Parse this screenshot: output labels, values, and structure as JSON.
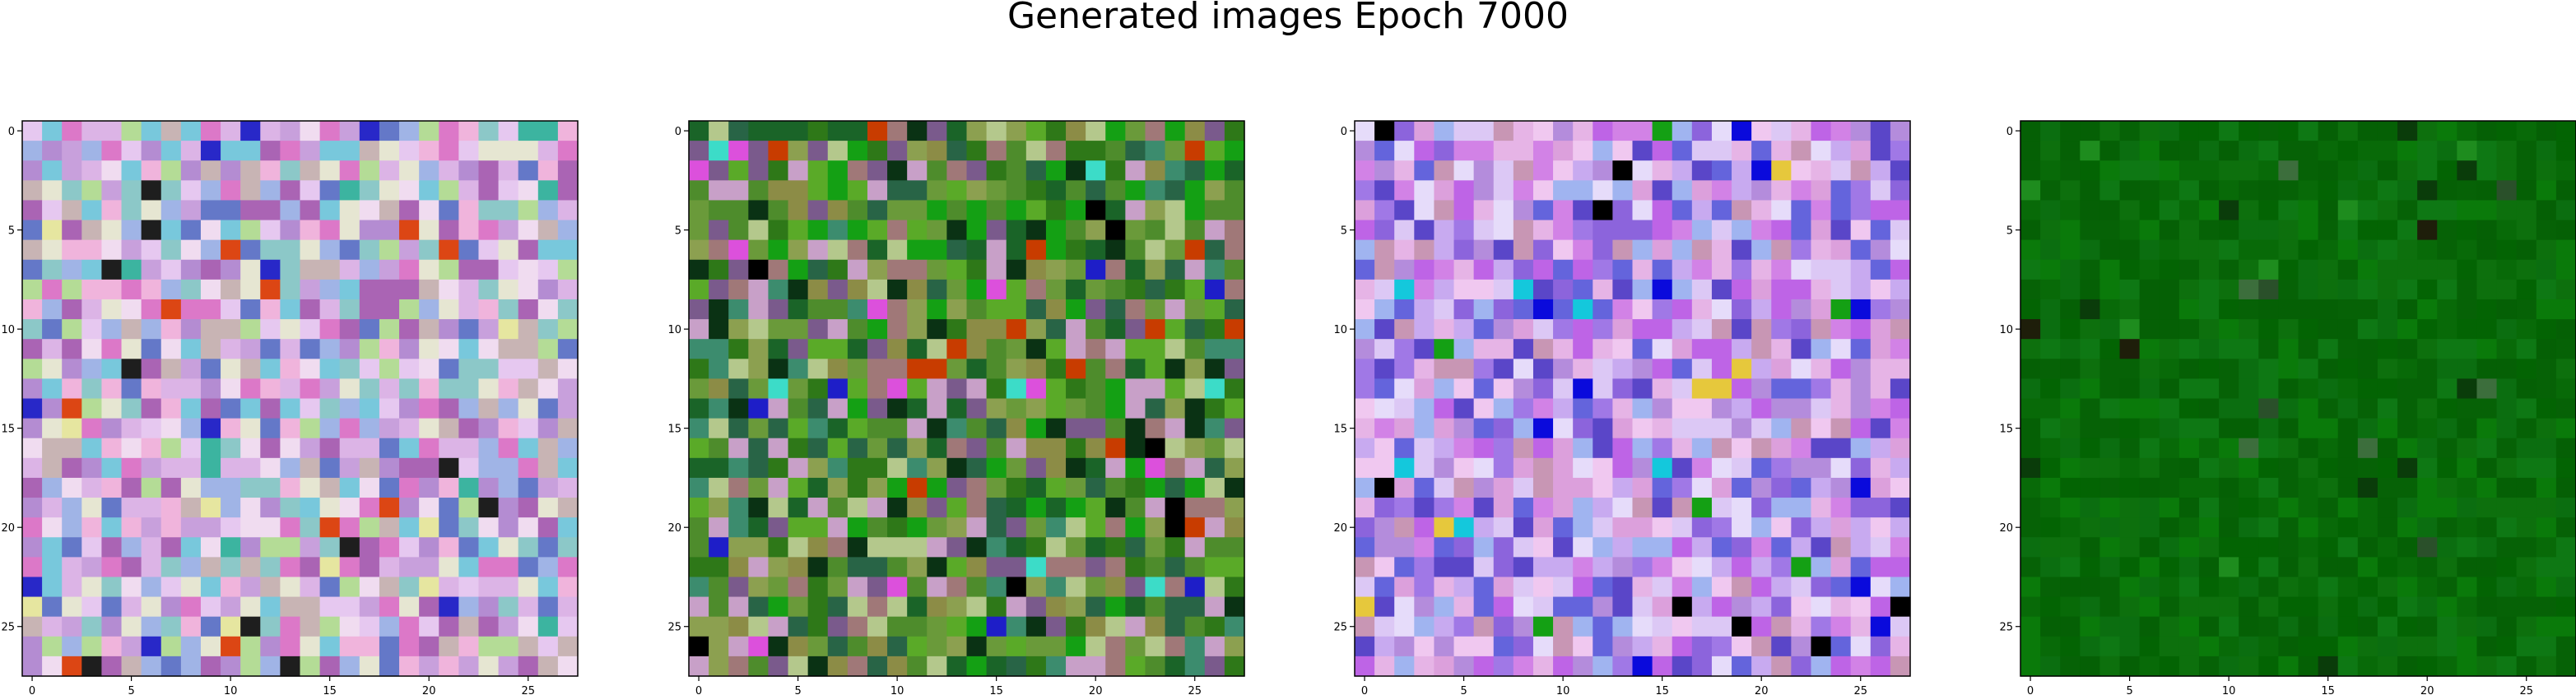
{
  "title": "Generated images Epoch 7000",
  "colors": {
    "palette_1_lilac": [
      "#c8a0dc",
      "#dcb4e6",
      "#b48cd2",
      "#e6c8f0",
      "#a0b4e6",
      "#78c8dc",
      "#f0b4dc",
      "#c8b4b4",
      "#8cc8c8",
      "#e6e6d2",
      "#dc78c8",
      "#b4dc96",
      "#6478c8",
      "#f0dcf0",
      "#aa64b4"
    ],
    "palette_2_green": [
      "#4e8c2c",
      "#2e7818",
      "#6a9a3a",
      "#1a6428",
      "#8ca050",
      "#3c8c6e",
      "#7a5a8c",
      "#a07878",
      "#b4c88c",
      "#14a014",
      "#286446",
      "#c8a0c8",
      "#5aaa28",
      "#0a3214",
      "#8c8c46"
    ],
    "palette_3_violet": [
      "#c8aaf0",
      "#dcc8f5",
      "#a078e6",
      "#e6dcfa",
      "#8c64dc",
      "#b48cdc",
      "#f0c8f0",
      "#6464dc",
      "#dca0dc",
      "#be64e6",
      "#a0b4f0",
      "#c896b4",
      "#5a46c8",
      "#e6b4e6",
      "#d282e6"
    ],
    "palette_4_darkgreen": [
      "#086a08",
      "#0a7a0a",
      "#056005",
      "#0d700d",
      "#036403",
      "#0b6e10",
      "#0e7814",
      "#066206"
    ]
  },
  "chart_data": [
    {
      "type": "heatmap",
      "rows": 28,
      "cols": 28,
      "xlim": [
        -0.5,
        27.5
      ],
      "ylim": [
        27.5,
        -0.5
      ],
      "xticks": [
        0,
        5,
        10,
        15,
        20,
        25
      ],
      "yticks": [
        0,
        5,
        10,
        15,
        20,
        25
      ],
      "seed": 11,
      "palette": "palette_1_lilac",
      "accents": [
        "#1e1e1e",
        "#2828c8",
        "#dc4614",
        "#3cb4a0",
        "#e6e6a0"
      ]
    },
    {
      "type": "heatmap",
      "rows": 28,
      "cols": 28,
      "xlim": [
        -0.5,
        27.5
      ],
      "ylim": [
        27.5,
        -0.5
      ],
      "xticks": [
        0,
        5,
        10,
        15,
        20,
        25
      ],
      "yticks": [
        0,
        5,
        10,
        15,
        20,
        25
      ],
      "seed": 23,
      "palette": "palette_2_green",
      "accents": [
        "#000000",
        "#1e1ec8",
        "#c83c00",
        "#3cdcc8",
        "#dc50dc"
      ]
    },
    {
      "type": "heatmap",
      "rows": 28,
      "cols": 28,
      "xlim": [
        -0.5,
        27.5
      ],
      "ylim": [
        27.5,
        -0.5
      ],
      "xticks": [
        0,
        5,
        10,
        15,
        20,
        25
      ],
      "yticks": [
        0,
        5,
        10,
        15,
        20,
        25
      ],
      "seed": 37,
      "palette": "palette_3_violet",
      "accents": [
        "#000000",
        "#0a0adc",
        "#e6c83c",
        "#14c8dc",
        "#14a014"
      ]
    },
    {
      "type": "heatmap",
      "rows": 28,
      "cols": 28,
      "xlim": [
        -0.5,
        27.5
      ],
      "ylim": [
        27.5,
        -0.5
      ],
      "xticks": [
        0,
        5,
        10,
        15,
        20,
        25
      ],
      "yticks": [
        0,
        5,
        10,
        15,
        20,
        25
      ],
      "seed": 51,
      "palette": "palette_4_darkgreen",
      "accents": [
        "#1e1e0a",
        "#2a502a",
        "#0a3c0a",
        "#3c6e3c",
        "#1e8c1e"
      ]
    }
  ]
}
